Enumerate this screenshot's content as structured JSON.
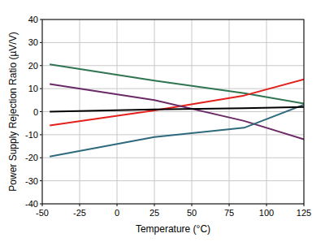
{
  "chart_data": {
    "type": "line",
    "x_label": "Temperature (°C)",
    "y_label": "Power Supply Rejection Ratio (µV/V)",
    "x": [
      -45,
      25,
      85,
      125
    ],
    "series": [
      {
        "color": "#2f7552",
        "values": [
          20.5,
          13.5,
          8,
          3.5
        ]
      },
      {
        "color": "#e3201b",
        "values": [
          -6,
          0.5,
          7,
          14
        ]
      },
      {
        "color": "#6b2a66",
        "values": [
          12,
          5,
          -4,
          -12
        ]
      },
      {
        "color": "#2f6a7c",
        "values": [
          -19.5,
          -11,
          -7,
          3
        ]
      },
      {
        "color": "#000000",
        "values": [
          0,
          1,
          1.5,
          2
        ]
      }
    ],
    "xlim": [
      -50,
      125
    ],
    "xticks": [
      -50,
      -25,
      0,
      25,
      50,
      75,
      100,
      125
    ],
    "ylim": [
      -40,
      40
    ],
    "yticks": [
      -40,
      -30,
      -20,
      -10,
      0,
      10,
      20,
      30,
      40
    ],
    "grid": true
  }
}
